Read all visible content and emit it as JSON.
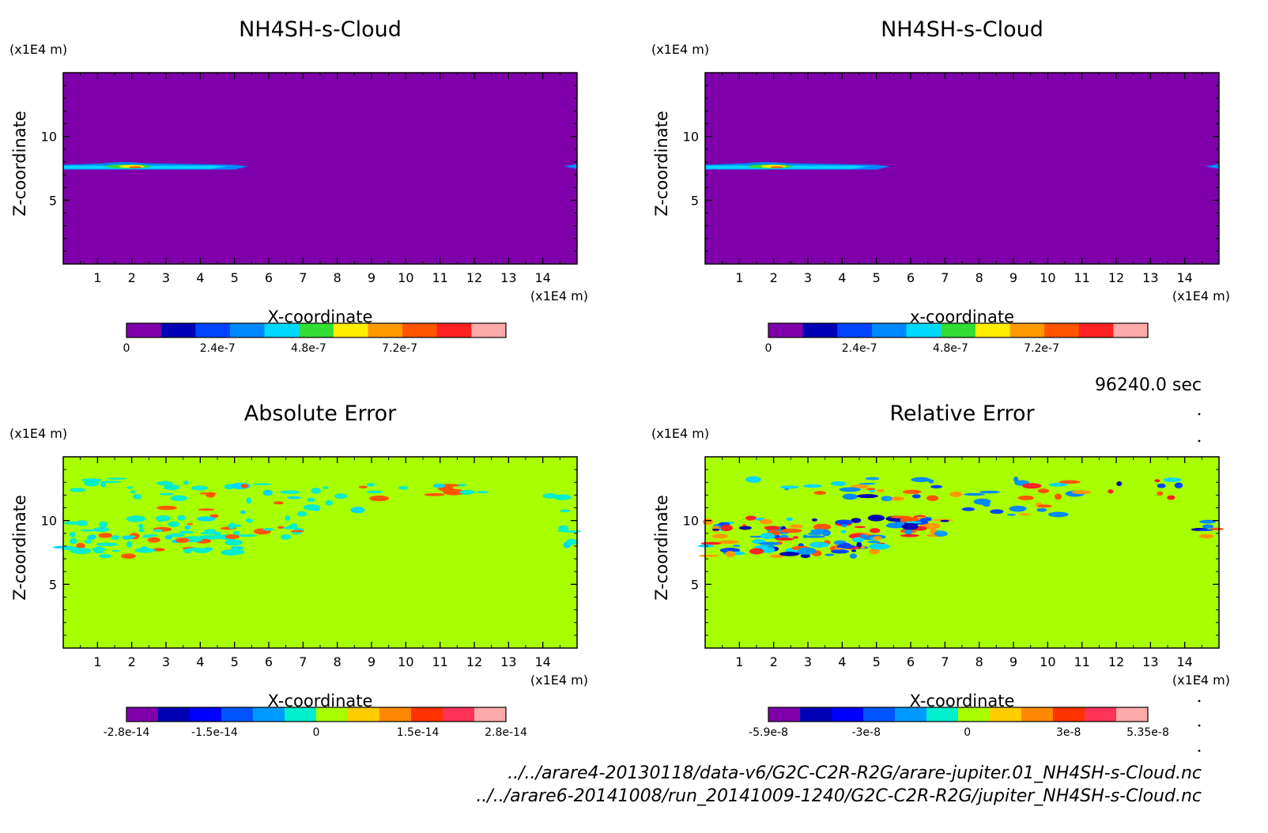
{
  "time_label": "96240.0 sec",
  "files": [
    "../../arare4-20130118/data-v6/G2C-C2R-R2G/arare-jupiter.01_NH4SH-s-Cloud.nc",
    "../../arare6-20141008/run_20141009-1240/G2C-C2R-R2G/jupiter_NH4SH-s-Cloud.nc"
  ],
  "chart_data": [
    {
      "type": "heatmap",
      "title": "NH4SH-s-Cloud",
      "xlabel": "X-coordinate",
      "ylabel": "Z-coordinate",
      "x_unit": "(x1E4 m)",
      "y_unit": "(x1E4 m)",
      "xlim": [
        0,
        15
      ],
      "ylim": [
        0,
        15
      ],
      "x_ticks": [
        1,
        2,
        3,
        4,
        5,
        6,
        7,
        8,
        9,
        10,
        11,
        12,
        13,
        14
      ],
      "y_ticks": [
        5,
        10
      ],
      "background_color": "#7f00aa",
      "colorbar": {
        "colors": [
          "#7f00aa",
          "#0000b4",
          "#0044ff",
          "#0088ff",
          "#00d8ff",
          "#33dd33",
          "#ffee00",
          "#ff9900",
          "#ff5500",
          "#ff2222",
          "#ffaaaa"
        ],
        "tick_labels": [
          "0",
          "2.4e-7",
          "4.8e-7",
          "7.2e-7"
        ],
        "tick_values": [
          0,
          2.4e-07,
          4.8e-07,
          7.2e-07
        ],
        "range": [
          0,
          1e-06
        ]
      },
      "features": [
        {
          "x": [
            0,
            5.3
          ],
          "z": [
            7.4,
            7.9
          ],
          "max_value": 7.5e-07,
          "note": ""
        },
        {
          "x": [
            14.5,
            15
          ],
          "z": [
            7.5,
            7.8
          ],
          "max_value": 2e-07,
          "note": ""
        }
      ]
    },
    {
      "type": "heatmap",
      "title": "NH4SH-s-Cloud",
      "xlabel": "x-coordinate",
      "ylabel": "Z-coordinate",
      "x_unit": "(x1E4 m)",
      "y_unit": "(x1E4 m)",
      "xlim": [
        0,
        15
      ],
      "ylim": [
        0,
        15
      ],
      "x_ticks": [
        1,
        2,
        3,
        4,
        5,
        6,
        7,
        8,
        9,
        10,
        11,
        12,
        13,
        14
      ],
      "y_ticks": [
        5,
        10
      ],
      "background_color": "#7f00aa",
      "colorbar": {
        "colors": [
          "#7f00aa",
          "#0000b4",
          "#0044ff",
          "#0088ff",
          "#00d8ff",
          "#33dd33",
          "#ffee00",
          "#ff9900",
          "#ff5500",
          "#ff2222",
          "#ffaaaa"
        ],
        "tick_labels": [
          "0",
          "2.4e-7",
          "4.8e-7",
          "7.2e-7"
        ],
        "tick_values": [
          0,
          2.4e-07,
          4.8e-07,
          7.2e-07
        ],
        "range": [
          0,
          1e-06
        ]
      },
      "features": [
        {
          "x": [
            0,
            5.3
          ],
          "z": [
            7.4,
            7.9
          ],
          "max_value": 7.5e-07
        },
        {
          "x": [
            14.5,
            15
          ],
          "z": [
            7.5,
            7.8
          ],
          "max_value": 2e-07
        }
      ]
    },
    {
      "type": "heatmap",
      "title": "Absolute Error",
      "xlabel": "X-coordinate",
      "ylabel": "Z-coordinate",
      "x_unit": "(x1E4 m)",
      "y_unit": "(x1E4 m)",
      "xlim": [
        0,
        15
      ],
      "ylim": [
        0,
        15
      ],
      "x_ticks": [
        1,
        2,
        3,
        4,
        5,
        6,
        7,
        8,
        9,
        10,
        11,
        12,
        13,
        14
      ],
      "y_ticks": [
        5,
        10
      ],
      "background_color": "#a8ff00",
      "colorbar": {
        "colors": [
          "#7f00aa",
          "#0000b4",
          "#0000ff",
          "#0055ff",
          "#0099ff",
          "#00eecc",
          "#a8ff00",
          "#ffcc00",
          "#ff8800",
          "#ff3300",
          "#ff3355",
          "#ffaaaa"
        ],
        "tick_labels": [
          "-2.8e-14",
          "-1.5e-14",
          "0",
          "1.5e-14",
          "2.8e-14"
        ],
        "tick_values": [
          -2.8e-14,
          -1.5e-14,
          0,
          1.5e-14,
          2.8e-14
        ],
        "range": [
          -2.8e-14,
          2.8e-14
        ]
      }
    },
    {
      "type": "heatmap",
      "title": "Relative Error",
      "xlabel": "X-coordinate",
      "ylabel": "Z-coordinate",
      "x_unit": "(x1E4 m)",
      "y_unit": "(x1E4 m)",
      "xlim": [
        0,
        15
      ],
      "ylim": [
        0,
        15
      ],
      "x_ticks": [
        1,
        2,
        3,
        4,
        5,
        6,
        7,
        8,
        9,
        10,
        11,
        12,
        13,
        14
      ],
      "y_ticks": [
        5,
        10
      ],
      "background_color": "#a8ff00",
      "colorbar": {
        "colors": [
          "#7f00aa",
          "#0000b4",
          "#0000ff",
          "#0055ff",
          "#0099ff",
          "#00eecc",
          "#a8ff00",
          "#ffcc00",
          "#ff8800",
          "#ff3300",
          "#ff3355",
          "#ffaaaa"
        ],
        "tick_labels": [
          "-5.9e-8",
          "-3e-8",
          "0",
          "3e-8",
          "5.35e-8"
        ],
        "tick_values": [
          -5.9e-08,
          -3e-08,
          0,
          3e-08,
          5.35e-08
        ],
        "range": [
          -5.9e-08,
          5.35e-08
        ]
      }
    }
  ]
}
